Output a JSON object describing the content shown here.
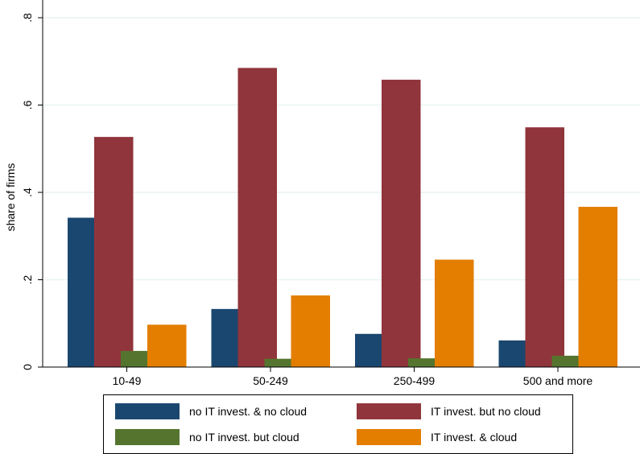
{
  "chart_data": {
    "type": "bar",
    "ylabel": "share of firms",
    "xlabel": "",
    "ylim": [
      0,
      0.8
    ],
    "yticks": [
      {
        "value": 0,
        "label": "0"
      },
      {
        "value": 0.2,
        "label": ".2"
      },
      {
        "value": 0.4,
        "label": ".4"
      },
      {
        "value": 0.6,
        "label": ".6"
      },
      {
        "value": 0.8,
        "label": ".8"
      }
    ],
    "grid": true,
    "legend_position": "bottom",
    "categories": [
      "10-49",
      "50-249",
      "250-499",
      "500 and more"
    ],
    "series": [
      {
        "name": "no IT invest. & no cloud",
        "color": "#1a476f",
        "values": [
          0.342,
          0.133,
          0.076,
          0.061
        ]
      },
      {
        "name": "IT invest. but no cloud",
        "color": "#90353b",
        "values": [
          0.527,
          0.685,
          0.658,
          0.549
        ]
      },
      {
        "name": "no IT invest. but cloud",
        "color": "#55752f",
        "values": [
          0.037,
          0.019,
          0.02,
          0.026
        ]
      },
      {
        "name": "IT invest. & cloud",
        "color": "#e37e00",
        "values": [
          0.097,
          0.164,
          0.246,
          0.367
        ]
      }
    ]
  }
}
